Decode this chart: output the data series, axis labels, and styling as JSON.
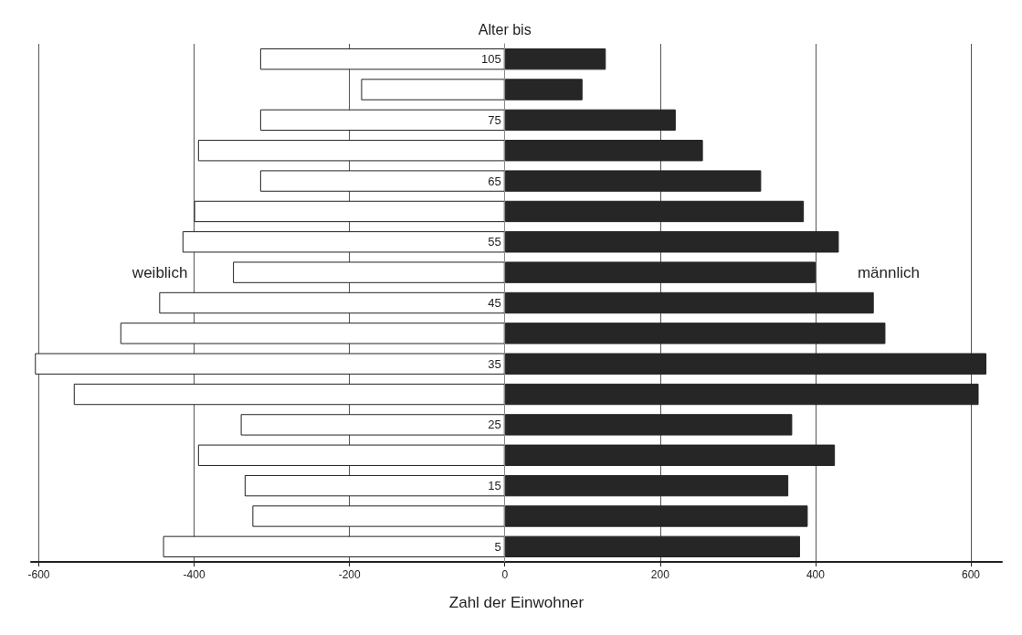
{
  "chart_data": {
    "type": "bar",
    "orientation": "horizontal",
    "stacked": true,
    "ylabel": "Alter bis",
    "xlabel": "Zahl der Einwohner",
    "categories": [
      "105",
      null,
      "75",
      null,
      "65",
      null,
      "55",
      null,
      "45",
      null,
      "35",
      null,
      "25",
      null,
      "15",
      null,
      "5"
    ],
    "series": [
      {
        "name": "weiblich",
        "color": "#ffffff",
        "values": [
          -315,
          -185,
          -315,
          -395,
          -315,
          -400,
          -415,
          -350,
          -445,
          -495,
          -605,
          -555,
          -340,
          -395,
          -335,
          -325,
          -440
        ]
      },
      {
        "name": "männlich",
        "color": "#262626",
        "values": [
          130,
          100,
          220,
          255,
          330,
          385,
          430,
          400,
          475,
          490,
          620,
          610,
          370,
          425,
          365,
          390,
          380
        ]
      }
    ],
    "xlim": [
      -610,
      640
    ],
    "xticks": [
      -600,
      -400,
      -200,
      0,
      200,
      400,
      600
    ],
    "grid": "x",
    "legend": false
  }
}
